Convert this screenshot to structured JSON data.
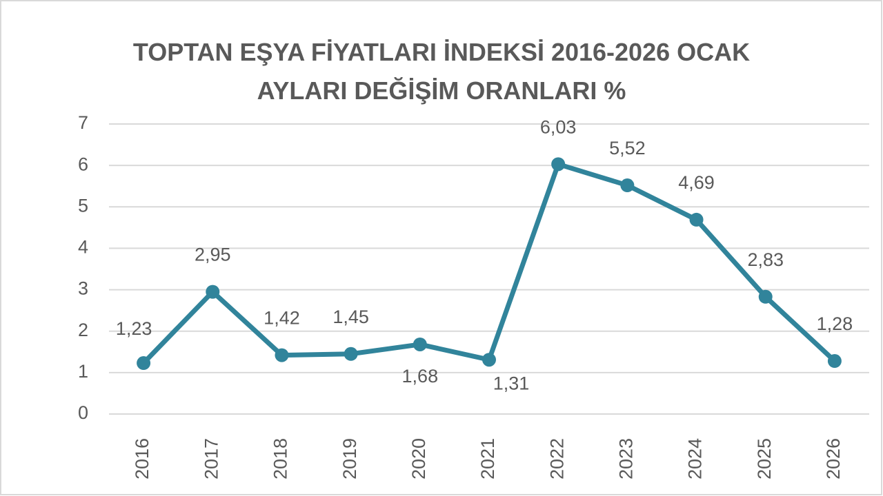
{
  "chart_data": {
    "type": "line",
    "title": "TOPTAN EŞYA FİYATLARI İNDEKSİ 2016-2026 OCAK AYLARI DEĞİŞİM ORANLARI %",
    "categories": [
      "2016",
      "2017",
      "2018",
      "2019",
      "2020",
      "2021",
      "2022",
      "2023",
      "2024",
      "2025",
      "2026"
    ],
    "series": [
      {
        "color": "#31849b",
        "values": [
          1.23,
          2.95,
          1.42,
          1.45,
          1.68,
          1.31,
          6.03,
          5.52,
          4.69,
          2.83,
          1.28
        ],
        "value_labels": [
          "1,23",
          "2,95",
          "1,42",
          "1,45",
          "1,68",
          "1,31",
          "6,03",
          "5,52",
          "4,69",
          "2,83",
          "1,28"
        ]
      }
    ],
    "ylim": [
      0,
      7
    ],
    "yticks": [
      0,
      1,
      2,
      3,
      4,
      5,
      6,
      7
    ],
    "grid": true
  }
}
